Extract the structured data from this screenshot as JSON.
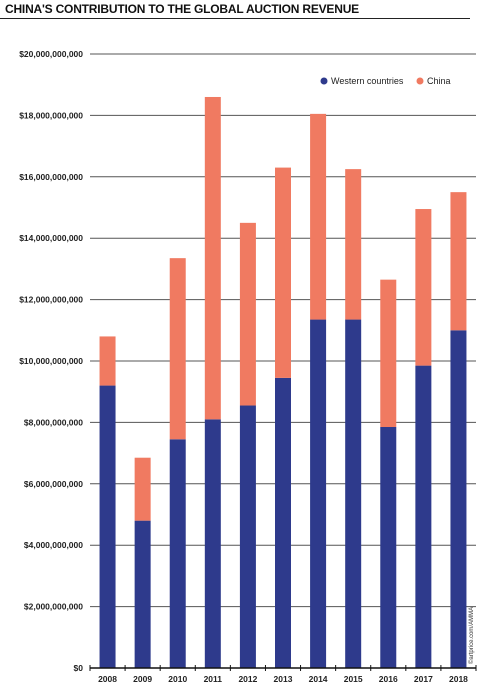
{
  "chart_data": {
    "type": "bar",
    "stacked": true,
    "title": "CHINA'S CONTRIBUTION TO THE GLOBAL AUCTION REVENUE",
    "categories": [
      "2008",
      "2009",
      "2010",
      "2011",
      "2012",
      "2013",
      "2014",
      "2015",
      "2016",
      "2017",
      "2018"
    ],
    "series": [
      {
        "name": "Western countries",
        "color": "#2e3a8c",
        "values": [
          9200000000,
          4800000000,
          7450000000,
          8100000000,
          8550000000,
          9450000000,
          11350000000,
          11350000000,
          7850000000,
          9850000000,
          11000000000
        ]
      },
      {
        "name": "China",
        "color": "#f07a61",
        "values": [
          1600000000,
          2050000000,
          5900000000,
          10500000000,
          5950000000,
          6850000000,
          6700000000,
          4900000000,
          4800000000,
          5100000000,
          4500000000
        ]
      }
    ],
    "ylim": [
      0,
      20000000000
    ],
    "yticks": [
      "$0",
      "$2,000,000,000",
      "$4,000,000,000",
      "$6,000,000,000",
      "$8,000,000,000",
      "$10,000,000,000",
      "$12,000,000,000",
      "$14,000,000,000",
      "$16,000,000,000",
      "$18,000,000,000",
      "$20,000,000,000"
    ],
    "grid": true,
    "legend_position": "top-right",
    "source_credit": "©artprice.com/AMMA"
  }
}
